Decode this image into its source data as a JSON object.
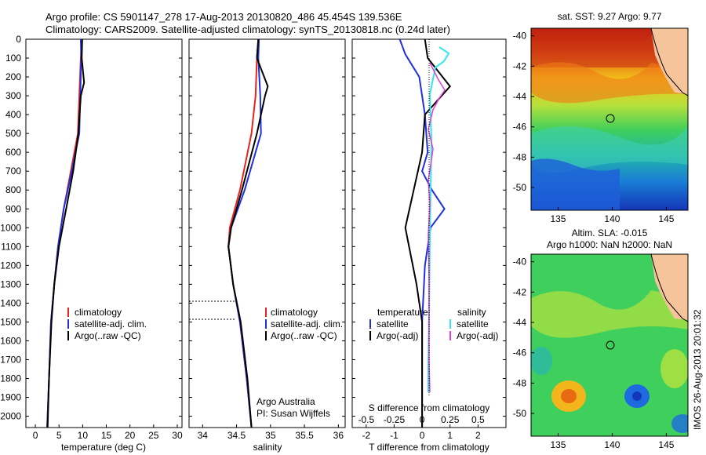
{
  "header": {
    "line1": "Argo profile: CS 5901147_278 17-Aug-2013 20130820_486 45.454S 139.536E",
    "line2": "Climatology: CARS2009. Satellite-adjusted climatology: synTS_20130818.nc (0.24d later)"
  },
  "colors": {
    "climatology": "#e8231e",
    "satellite": "#1f2fe0",
    "argo": "#000000",
    "sal_satellite": "#33e6ee",
    "sal_argo": "#e23fd6"
  },
  "depth_axis": {
    "ticks": [
      0,
      100,
      200,
      300,
      400,
      500,
      600,
      700,
      800,
      900,
      1000,
      1100,
      1200,
      1300,
      1400,
      1500,
      1600,
      1700,
      1800,
      1900,
      2000
    ],
    "ylim": [
      0,
      2060
    ]
  },
  "panels": {
    "temperature": {
      "xlabel": "temperature (deg C)",
      "xticks": [
        "0",
        "5",
        "10",
        "15",
        "20",
        "25",
        "30"
      ],
      "legend": [
        "climatology",
        "satellite-adj. clim.",
        "Argo(..raw -QC)"
      ]
    },
    "salinity": {
      "xlabel": "salinity",
      "xticks": [
        "34",
        "34.5",
        "35",
        "35.5",
        "36"
      ],
      "legend": [
        "climatology",
        "satellite-adj. clim.",
        "Argo(..raw -QC)"
      ],
      "credit1": "Argo Australia",
      "credit2": "PI: Susan Wijffels"
    },
    "difference": {
      "xlabel": "T difference from climatology",
      "xlabel_top": "S difference from climatology",
      "xticks_bottom": [
        "-2",
        "-1",
        "0",
        "1",
        "2"
      ],
      "xticks_top": [
        "-0.5",
        "-0.25",
        "0",
        "0.25",
        "0.5"
      ],
      "legend_temp_title": "temperature",
      "legend_sal_title": "salinity",
      "legend_temp": [
        "satellite",
        "Argo(-adj)"
      ],
      "legend_sal": [
        "satellite",
        "Argo(-adj)"
      ]
    }
  },
  "maps": {
    "top_title": "sat. SST: 9.27 Argo: 9.77",
    "bottom_title1": "Altim. SLA: -0.015",
    "bottom_title2": "Argo h1000: NaN h2000: NaN",
    "lat_ticks": [
      "-40",
      "-42",
      "-44",
      "-46",
      "-48",
      "-50"
    ],
    "lon_ticks": [
      "135",
      "140",
      "145"
    ]
  },
  "stamp": "IMOS 26-Aug-2013 20:01:32",
  "chart_data": [
    {
      "type": "line",
      "title": "",
      "xlabel": "temperature (deg C)",
      "ylabel": "",
      "xlim": [
        -2,
        31
      ],
      "ylim": [
        2060,
        0
      ],
      "series": [
        {
          "name": "climatology",
          "x": [
            9.8,
            9.6,
            9.3,
            9.0,
            7.5,
            6.0,
            4.8,
            4.0,
            3.3,
            2.9,
            2.5
          ],
          "y": [
            0,
            100,
            300,
            500,
            700,
            900,
            1100,
            1300,
            1500,
            1800,
            2060
          ]
        },
        {
          "name": "satellite-adj. clim.",
          "x": [
            9.6,
            9.7,
            9.5,
            9.3,
            7.7,
            6.0,
            4.8,
            4.0,
            3.3,
            2.9,
            2.5
          ],
          "y": [
            0,
            100,
            300,
            500,
            700,
            900,
            1100,
            1300,
            1500,
            1800,
            2060
          ]
        },
        {
          "name": "Argo(..raw -QC)",
          "x": [
            9.9,
            9.8,
            10.3,
            9.6,
            9.1,
            8.0,
            6.5,
            5.0,
            4.0,
            3.4,
            2.9,
            2.6
          ],
          "y": [
            0,
            100,
            230,
            300,
            500,
            700,
            900,
            1100,
            1300,
            1500,
            1800,
            2060
          ]
        }
      ]
    },
    {
      "type": "line",
      "title": "",
      "xlabel": "salinity",
      "ylabel": "",
      "xlim": [
        33.8,
        36.1
      ],
      "ylim": [
        2060,
        0
      ],
      "series": [
        {
          "name": "climatology",
          "x": [
            34.82,
            34.8,
            34.78,
            34.72,
            34.55,
            34.4,
            34.38,
            34.45,
            34.55,
            34.65,
            34.72
          ],
          "y": [
            0,
            100,
            300,
            500,
            800,
            1000,
            1100,
            1300,
            1500,
            1800,
            2060
          ]
        },
        {
          "name": "satellite-adj. clim.",
          "x": [
            34.83,
            34.82,
            34.85,
            34.86,
            34.62,
            34.42,
            34.38,
            34.45,
            34.55,
            34.65,
            34.72
          ],
          "y": [
            0,
            100,
            300,
            500,
            800,
            1000,
            1100,
            1300,
            1500,
            1800,
            2060
          ]
        },
        {
          "name": "Argo(..raw -QC)",
          "x": [
            34.82,
            34.8,
            34.96,
            34.92,
            34.8,
            34.58,
            34.42,
            34.38,
            34.45,
            34.56,
            34.66,
            34.72
          ],
          "y": [
            0,
            100,
            250,
            300,
            500,
            800,
            1000,
            1100,
            1300,
            1500,
            1800,
            2060
          ]
        }
      ]
    },
    {
      "type": "line",
      "title": "",
      "xlabel": "T difference from climatology",
      "ylabel": "",
      "xlim": [
        -2.5,
        3
      ],
      "ylim": [
        2060,
        0
      ],
      "series": [
        {
          "name": "satellite",
          "x": [
            -0.8,
            -0.6,
            -0.1,
            0.1,
            0.2,
            0.0,
            0.35,
            0.8,
            0.3,
            0.1,
            0.0,
            0.0,
            0.0
          ],
          "y": [
            0,
            80,
            200,
            400,
            600,
            700,
            800,
            900,
            1000,
            1200,
            1500,
            1800,
            2060
          ]
        },
        {
          "name": "Argo(-adj)",
          "x": [
            0.1,
            0.2,
            1.0,
            0.1,
            0.0,
            -0.3,
            -0.6,
            -0.2,
            0.0,
            0.0,
            0.0
          ],
          "y": [
            0,
            100,
            250,
            400,
            600,
            800,
            1000,
            1300,
            1500,
            1800,
            2060
          ]
        }
      ]
    }
  ]
}
